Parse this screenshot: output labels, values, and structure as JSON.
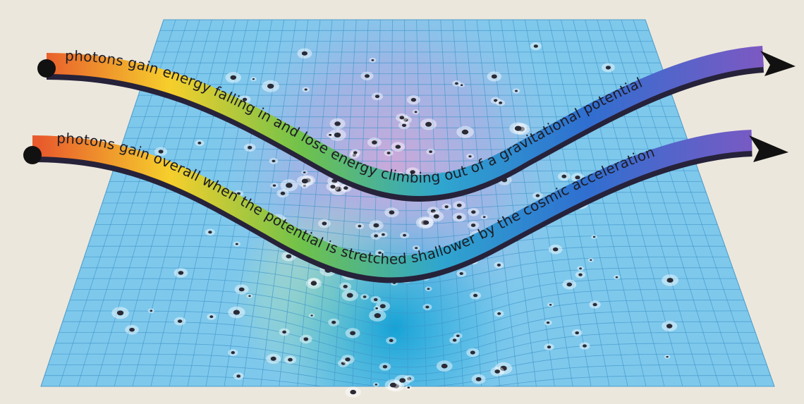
{
  "figure": {
    "ribbon_top": {
      "text": "photons gain energy falling in and lose energy climbing out of a gravitational potential"
    },
    "ribbon_bottom": {
      "text": "photons gain overall when the potential is stretched shallower by the cosmic acceleration"
    }
  },
  "colors": {
    "background": "#ece7dc",
    "grid_fill": "#7ec8ec",
    "grid_line": "#3f96c9",
    "well_magenta": "#b8a8dc",
    "well_cyan": "#1fa6d8",
    "ribbon_gradient": [
      "#e85a2c",
      "#f6cf2c",
      "#6fc24a",
      "#2fa6cf",
      "#2f6fd0",
      "#7f58c2"
    ],
    "arrow": "#111111",
    "galaxy": "#2a2a35"
  }
}
